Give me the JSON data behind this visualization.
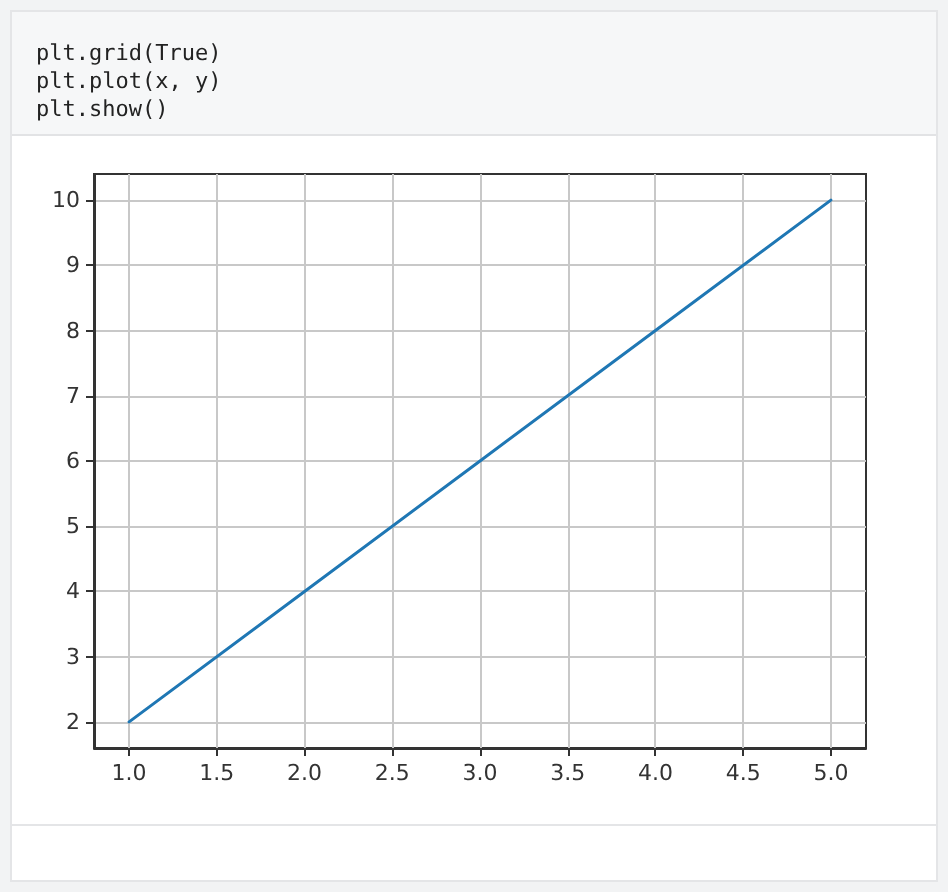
{
  "chart_data": {
    "type": "line",
    "annotations": [
      "plt.grid(True)",
      "plt.plot(x, y)",
      "plt.show()"
    ],
    "x": [
      1,
      2,
      3,
      4,
      5
    ],
    "values": [
      2,
      4,
      6,
      8,
      10
    ],
    "color": "#1f77b4",
    "xlim": [
      0.8,
      5.2
    ],
    "ylim": [
      1.6,
      10.4
    ],
    "xticks": [
      {
        "value": 1,
        "label": "1.0"
      },
      {
        "value": 1.5,
        "label": "1.5"
      },
      {
        "value": 2,
        "label": "2.0"
      },
      {
        "value": 2.5,
        "label": "2.5"
      },
      {
        "value": 3,
        "label": "3.0"
      },
      {
        "value": 3.5,
        "label": "3.5"
      },
      {
        "value": 4,
        "label": "4.0"
      },
      {
        "value": 4.5,
        "label": "4.5"
      },
      {
        "value": 5,
        "label": "5.0"
      }
    ],
    "yticks": [
      2,
      3,
      4,
      5,
      6,
      7,
      8,
      9,
      10
    ],
    "grid": true
  }
}
